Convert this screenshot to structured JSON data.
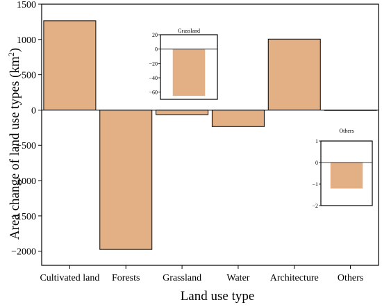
{
  "chart_data": {
    "main": {
      "type": "bar",
      "categories": [
        "Cultivated land",
        "Forests",
        "Grassland",
        "Water",
        "Architecture",
        "Others"
      ],
      "values": [
        1265,
        -1975,
        -65,
        -235,
        1005,
        -1.2
      ],
      "xlabel": "Land use type",
      "ylabel": "Area change of land use types (km²)",
      "ylabel_base": "Area change of land use types (km",
      "ylabel_sup": "2",
      "ylabel_close": ")",
      "ylim": [
        -2200,
        1500
      ],
      "yticks": [
        -2000,
        -1500,
        -1000,
        -500,
        0,
        500,
        1000,
        1500
      ],
      "grid": false,
      "bar_color": "#e3b086",
      "zero_line": true
    },
    "insets": [
      {
        "type": "bar",
        "title": "Grassland",
        "categories": [
          "Grassland"
        ],
        "values": [
          -65
        ],
        "ylim": [
          -70,
          20
        ],
        "yticks": [
          -60,
          -40,
          -20,
          0,
          20
        ]
      },
      {
        "type": "bar",
        "title": "Others",
        "categories": [
          "Others"
        ],
        "values": [
          -1.2
        ],
        "ylim": [
          -2,
          1
        ],
        "yticks": [
          -2,
          -1,
          0,
          1
        ]
      }
    ]
  }
}
